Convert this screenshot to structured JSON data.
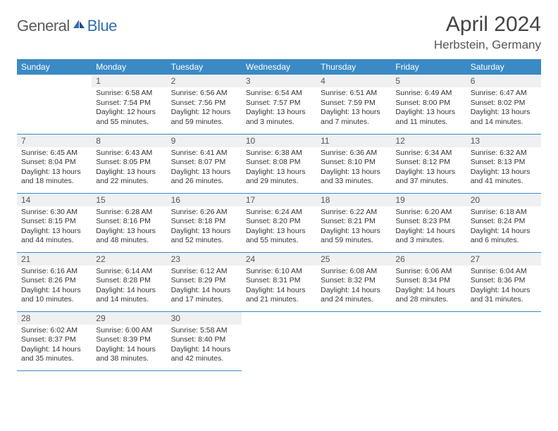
{
  "brand": {
    "part1": "General",
    "part2": "Blue"
  },
  "title": "April 2024",
  "location": "Herbstein, Germany",
  "header_bg": "#3b8ac4",
  "weekdays": [
    "Sunday",
    "Monday",
    "Tuesday",
    "Wednesday",
    "Thursday",
    "Friday",
    "Saturday"
  ],
  "weeks": [
    [
      {
        "n": "",
        "sr": "",
        "ss": "",
        "d1": "",
        "d2": ""
      },
      {
        "n": "1",
        "sr": "Sunrise: 6:58 AM",
        "ss": "Sunset: 7:54 PM",
        "d1": "Daylight: 12 hours",
        "d2": "and 55 minutes."
      },
      {
        "n": "2",
        "sr": "Sunrise: 6:56 AM",
        "ss": "Sunset: 7:56 PM",
        "d1": "Daylight: 12 hours",
        "d2": "and 59 minutes."
      },
      {
        "n": "3",
        "sr": "Sunrise: 6:54 AM",
        "ss": "Sunset: 7:57 PM",
        "d1": "Daylight: 13 hours",
        "d2": "and 3 minutes."
      },
      {
        "n": "4",
        "sr": "Sunrise: 6:51 AM",
        "ss": "Sunset: 7:59 PM",
        "d1": "Daylight: 13 hours",
        "d2": "and 7 minutes."
      },
      {
        "n": "5",
        "sr": "Sunrise: 6:49 AM",
        "ss": "Sunset: 8:00 PM",
        "d1": "Daylight: 13 hours",
        "d2": "and 11 minutes."
      },
      {
        "n": "6",
        "sr": "Sunrise: 6:47 AM",
        "ss": "Sunset: 8:02 PM",
        "d1": "Daylight: 13 hours",
        "d2": "and 14 minutes."
      }
    ],
    [
      {
        "n": "7",
        "sr": "Sunrise: 6:45 AM",
        "ss": "Sunset: 8:04 PM",
        "d1": "Daylight: 13 hours",
        "d2": "and 18 minutes."
      },
      {
        "n": "8",
        "sr": "Sunrise: 6:43 AM",
        "ss": "Sunset: 8:05 PM",
        "d1": "Daylight: 13 hours",
        "d2": "and 22 minutes."
      },
      {
        "n": "9",
        "sr": "Sunrise: 6:41 AM",
        "ss": "Sunset: 8:07 PM",
        "d1": "Daylight: 13 hours",
        "d2": "and 26 minutes."
      },
      {
        "n": "10",
        "sr": "Sunrise: 6:38 AM",
        "ss": "Sunset: 8:08 PM",
        "d1": "Daylight: 13 hours",
        "d2": "and 29 minutes."
      },
      {
        "n": "11",
        "sr": "Sunrise: 6:36 AM",
        "ss": "Sunset: 8:10 PM",
        "d1": "Daylight: 13 hours",
        "d2": "and 33 minutes."
      },
      {
        "n": "12",
        "sr": "Sunrise: 6:34 AM",
        "ss": "Sunset: 8:12 PM",
        "d1": "Daylight: 13 hours",
        "d2": "and 37 minutes."
      },
      {
        "n": "13",
        "sr": "Sunrise: 6:32 AM",
        "ss": "Sunset: 8:13 PM",
        "d1": "Daylight: 13 hours",
        "d2": "and 41 minutes."
      }
    ],
    [
      {
        "n": "14",
        "sr": "Sunrise: 6:30 AM",
        "ss": "Sunset: 8:15 PM",
        "d1": "Daylight: 13 hours",
        "d2": "and 44 minutes."
      },
      {
        "n": "15",
        "sr": "Sunrise: 6:28 AM",
        "ss": "Sunset: 8:16 PM",
        "d1": "Daylight: 13 hours",
        "d2": "and 48 minutes."
      },
      {
        "n": "16",
        "sr": "Sunrise: 6:26 AM",
        "ss": "Sunset: 8:18 PM",
        "d1": "Daylight: 13 hours",
        "d2": "and 52 minutes."
      },
      {
        "n": "17",
        "sr": "Sunrise: 6:24 AM",
        "ss": "Sunset: 8:20 PM",
        "d1": "Daylight: 13 hours",
        "d2": "and 55 minutes."
      },
      {
        "n": "18",
        "sr": "Sunrise: 6:22 AM",
        "ss": "Sunset: 8:21 PM",
        "d1": "Daylight: 13 hours",
        "d2": "and 59 minutes."
      },
      {
        "n": "19",
        "sr": "Sunrise: 6:20 AM",
        "ss": "Sunset: 8:23 PM",
        "d1": "Daylight: 14 hours",
        "d2": "and 3 minutes."
      },
      {
        "n": "20",
        "sr": "Sunrise: 6:18 AM",
        "ss": "Sunset: 8:24 PM",
        "d1": "Daylight: 14 hours",
        "d2": "and 6 minutes."
      }
    ],
    [
      {
        "n": "21",
        "sr": "Sunrise: 6:16 AM",
        "ss": "Sunset: 8:26 PM",
        "d1": "Daylight: 14 hours",
        "d2": "and 10 minutes."
      },
      {
        "n": "22",
        "sr": "Sunrise: 6:14 AM",
        "ss": "Sunset: 8:28 PM",
        "d1": "Daylight: 14 hours",
        "d2": "and 14 minutes."
      },
      {
        "n": "23",
        "sr": "Sunrise: 6:12 AM",
        "ss": "Sunset: 8:29 PM",
        "d1": "Daylight: 14 hours",
        "d2": "and 17 minutes."
      },
      {
        "n": "24",
        "sr": "Sunrise: 6:10 AM",
        "ss": "Sunset: 8:31 PM",
        "d1": "Daylight: 14 hours",
        "d2": "and 21 minutes."
      },
      {
        "n": "25",
        "sr": "Sunrise: 6:08 AM",
        "ss": "Sunset: 8:32 PM",
        "d1": "Daylight: 14 hours",
        "d2": "and 24 minutes."
      },
      {
        "n": "26",
        "sr": "Sunrise: 6:06 AM",
        "ss": "Sunset: 8:34 PM",
        "d1": "Daylight: 14 hours",
        "d2": "and 28 minutes."
      },
      {
        "n": "27",
        "sr": "Sunrise: 6:04 AM",
        "ss": "Sunset: 8:36 PM",
        "d1": "Daylight: 14 hours",
        "d2": "and 31 minutes."
      }
    ],
    [
      {
        "n": "28",
        "sr": "Sunrise: 6:02 AM",
        "ss": "Sunset: 8:37 PM",
        "d1": "Daylight: 14 hours",
        "d2": "and 35 minutes."
      },
      {
        "n": "29",
        "sr": "Sunrise: 6:00 AM",
        "ss": "Sunset: 8:39 PM",
        "d1": "Daylight: 14 hours",
        "d2": "and 38 minutes."
      },
      {
        "n": "30",
        "sr": "Sunrise: 5:58 AM",
        "ss": "Sunset: 8:40 PM",
        "d1": "Daylight: 14 hours",
        "d2": "and 42 minutes."
      },
      {
        "n": "",
        "sr": "",
        "ss": "",
        "d1": "",
        "d2": ""
      },
      {
        "n": "",
        "sr": "",
        "ss": "",
        "d1": "",
        "d2": ""
      },
      {
        "n": "",
        "sr": "",
        "ss": "",
        "d1": "",
        "d2": ""
      },
      {
        "n": "",
        "sr": "",
        "ss": "",
        "d1": "",
        "d2": ""
      }
    ]
  ]
}
